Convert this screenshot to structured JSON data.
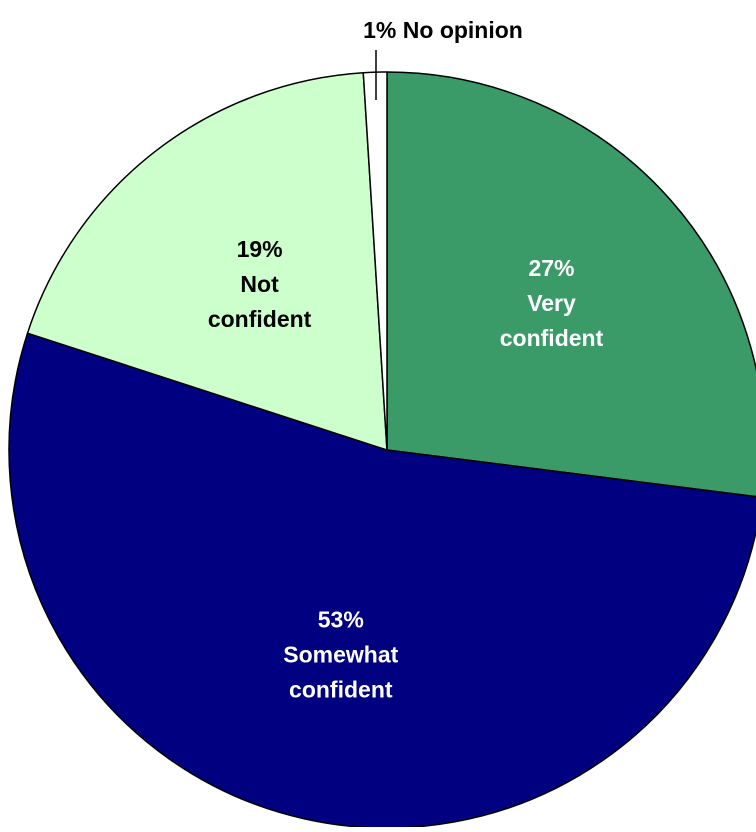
{
  "chart_data": {
    "type": "pie",
    "slices": [
      {
        "label": "Very confident",
        "lines": [
          "27%",
          "Very",
          "confident"
        ],
        "value": 27,
        "color": "#3a9a68",
        "text_color": "#ffffff"
      },
      {
        "label": "Somewhat confident",
        "lines": [
          "53%",
          "Somewhat",
          "confident"
        ],
        "value": 53,
        "color": "#000080",
        "text_color": "#ffffff"
      },
      {
        "label": "Not confident",
        "lines": [
          "19%",
          "Not",
          "confident"
        ],
        "value": 19,
        "color": "#ccffcc",
        "text_color": "#000000"
      },
      {
        "label": "No opinion",
        "lines": [
          "1% No opinion"
        ],
        "value": 1,
        "color": "#ffffff",
        "text_color": "#000000"
      }
    ],
    "start": "12 o'clock",
    "direction": "clockwise",
    "legend": "none"
  }
}
